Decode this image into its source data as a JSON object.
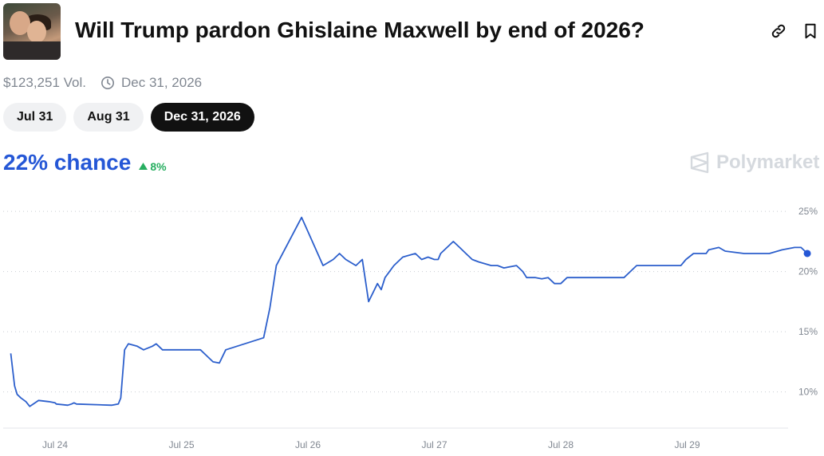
{
  "header": {
    "title": "Will Trump pardon Ghislaine Maxwell by end of 2026?",
    "volume": "$123,251 Vol.",
    "end_date": "Dec 31, 2026"
  },
  "tabs": [
    {
      "label": "Jul 31",
      "active": false
    },
    {
      "label": "Aug 31",
      "active": false
    },
    {
      "label": "Dec 31, 2026",
      "active": true
    }
  ],
  "summary": {
    "chance": "22% chance",
    "delta": "8%",
    "delta_direction": "up"
  },
  "brand": {
    "name": "Polymarket"
  },
  "icons": {
    "link": "link-icon",
    "bookmark": "bookmark-icon",
    "clock": "clock-icon",
    "brand_logo": "polymarket-logo-icon"
  },
  "colors": {
    "accent": "#2557d6",
    "line": "#2c5fcc",
    "positive": "#27ae60",
    "active_tab": "#111111"
  },
  "chart_data": {
    "type": "line",
    "x_tick_labels": [
      "Jul 24",
      "Jul 25",
      "Jul 26",
      "Jul 27",
      "Jul 28",
      "Jul 29"
    ],
    "y_tick_labels": [
      "10%",
      "15%",
      "20%",
      "25%"
    ],
    "yticks": [
      10,
      15,
      20,
      25
    ],
    "ylim": [
      7,
      26
    ],
    "xlim": [
      0,
      6.35
    ],
    "grid": true,
    "series": [
      {
        "x": [
          0,
          0.03,
          0.05,
          0.08,
          0.12,
          0.15,
          0.22,
          0.3,
          0.35,
          0.36,
          0.45,
          0.48,
          0.5,
          0.52,
          0.8,
          0.85,
          0.87,
          0.9,
          0.93,
          1.0,
          1.05,
          1.12,
          1.15,
          1.17,
          1.2,
          1.5,
          1.55,
          1.6,
          1.65,
          1.7,
          2.0,
          2.05,
          2.1,
          2.3,
          2.47,
          2.55,
          2.6,
          2.65,
          2.73,
          2.78,
          2.83,
          2.9,
          2.93,
          2.96,
          3.03,
          3.1,
          3.2,
          3.25,
          3.3,
          3.35,
          3.38,
          3.4,
          3.45,
          3.5,
          3.55,
          3.6,
          3.65,
          3.7,
          3.8,
          3.85,
          3.9,
          4.0,
          4.05,
          4.08,
          4.15,
          4.2,
          4.25,
          4.3,
          4.35,
          4.4,
          4.5,
          4.8,
          4.85,
          4.9,
          4.95,
          5.0,
          5.05,
          5.1,
          5.2,
          5.3,
          5.34,
          5.4,
          5.5,
          5.52,
          5.6,
          5.65,
          5.8,
          6.0,
          6.1,
          6.2,
          6.25,
          6.3
        ],
        "y": [
          13.2,
          10.5,
          9.8,
          9.5,
          9.2,
          8.8,
          9.3,
          9.2,
          9.1,
          9.0,
          8.9,
          9.0,
          9.1,
          9.0,
          8.9,
          9.0,
          9.5,
          13.5,
          14.0,
          13.8,
          13.5,
          13.8,
          14.0,
          13.8,
          13.5,
          13.5,
          13.0,
          12.5,
          12.4,
          13.5,
          14.5,
          17.0,
          20.5,
          24.5,
          20.5,
          21.0,
          21.5,
          21.0,
          20.5,
          21.0,
          17.5,
          19.0,
          18.5,
          19.5,
          20.5,
          21.2,
          21.5,
          21.0,
          21.2,
          21.0,
          21.0,
          21.5,
          22.0,
          22.5,
          22.0,
          21.5,
          21.0,
          20.8,
          20.5,
          20.5,
          20.3,
          20.5,
          20.0,
          19.5,
          19.5,
          19.4,
          19.5,
          19.0,
          19.0,
          19.5,
          19.5,
          19.5,
          19.5,
          20.0,
          20.5,
          20.5,
          20.5,
          20.5,
          20.5,
          20.5,
          21.0,
          21.5,
          21.5,
          21.8,
          22.0,
          21.7,
          21.5,
          21.5,
          21.8,
          22.0,
          22.0,
          21.5
        ]
      }
    ]
  }
}
